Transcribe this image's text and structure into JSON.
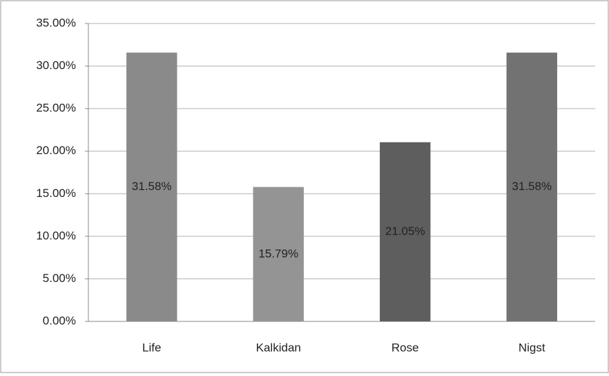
{
  "chart_data": {
    "type": "bar",
    "categories": [
      "Life",
      "Kalkidan",
      "Rose",
      "Nigst"
    ],
    "values": [
      31.58,
      15.79,
      21.05,
      31.58
    ],
    "value_labels": [
      "31.58%",
      "15.79%",
      "21.05%",
      "31.58%"
    ],
    "colors": [
      "#8a8a8a",
      "#949494",
      "#5e5e5e",
      "#727272"
    ],
    "ylim": [
      0,
      35
    ],
    "yticks": [
      {
        "value": 0,
        "label": "0.00%"
      },
      {
        "value": 5,
        "label": "5.00%"
      },
      {
        "value": 10,
        "label": "10.00%"
      },
      {
        "value": 15,
        "label": "15.00%"
      },
      {
        "value": 20,
        "label": "20.00%"
      },
      {
        "value": 25,
        "label": "25.00%"
      },
      {
        "value": 30,
        "label": "30.00%"
      },
      {
        "value": 35,
        "label": "35.00%"
      }
    ],
    "grid": true
  }
}
